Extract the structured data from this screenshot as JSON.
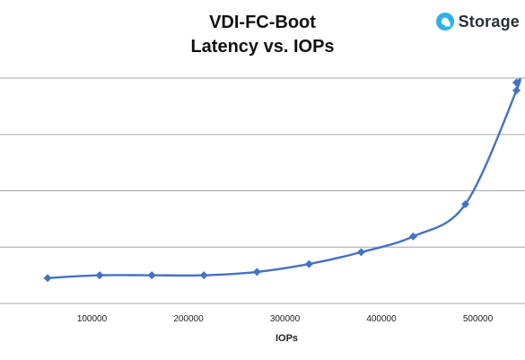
{
  "brand": {
    "name": "Storage",
    "logo_icon": "storage-review-logo-icon"
  },
  "colors": {
    "series": "#4472c4",
    "grid": "#a6a6a6",
    "axis": "#a6a6a6",
    "title": "#111111",
    "brand_accent": "#2fb1e8"
  },
  "chart_data": {
    "type": "line",
    "title_lines": [
      "VDI-FC-Boot",
      "Latency vs. IOPs"
    ],
    "xlabel": "IOPs",
    "ylabel": "",
    "xlim": [
      0,
      550000
    ],
    "xticks": [
      100000,
      200000,
      300000,
      400000,
      500000
    ],
    "xtick_labels": [
      "100000",
      "200000",
      "300000",
      "400000",
      "500000"
    ],
    "ylim": [
      0,
      4
    ],
    "grid": true,
    "smooth": true,
    "series": [
      {
        "x": [
          54000,
          108000,
          162000,
          216000,
          271000,
          325000,
          379000,
          433000,
          487000,
          540000,
          540000
        ],
        "y": [
          0.45,
          0.5,
          0.5,
          0.5,
          0.56,
          0.7,
          0.91,
          1.19,
          1.76,
          3.78,
          3.92
        ]
      }
    ]
  }
}
